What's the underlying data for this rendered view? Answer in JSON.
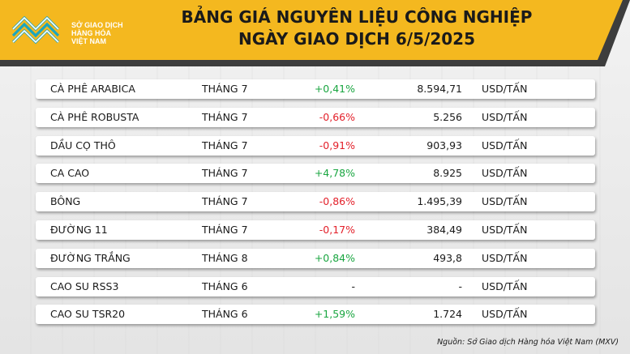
{
  "logo": {
    "line1": "SỞ GIAO DỊCH",
    "line2": "HÀNG HÓA",
    "line3": "VIỆT NAM"
  },
  "title": {
    "line1": "BẢNG GIÁ NGUYÊN LIỆU CÔNG NGHIỆP",
    "line2": "NGÀY GIAO DỊCH 6/5/2025"
  },
  "colors": {
    "header_yellow": "#f4b81f",
    "header_dark": "#3d3d3d",
    "logo_teal": "#1aa5c0",
    "up": "#1aa641",
    "down": "#e3202a"
  },
  "rows": [
    {
      "name": "CÀ PHÊ ARABICA",
      "month": "THÁNG 7",
      "change": "+0,41%",
      "trend": "up",
      "price": "8.594,71",
      "unit": "USD/TẤN"
    },
    {
      "name": "CÀ PHÊ ROBUSTA",
      "month": "THÁNG 7",
      "change": "-0,66%",
      "trend": "down",
      "price": "5.256",
      "unit": "USD/TẤN"
    },
    {
      "name": "DẦU CỌ THÔ",
      "month": "THÁNG 7",
      "change": "-0,91%",
      "trend": "down",
      "price": "903,93",
      "unit": "USD/TẤN"
    },
    {
      "name": "CA CAO",
      "month": "THÁNG 7",
      "change": "+4,78%",
      "trend": "up",
      "price": "8.925",
      "unit": "USD/TẤN"
    },
    {
      "name": "BÔNG",
      "month": "THÁNG 7",
      "change": "-0,86%",
      "trend": "down",
      "price": "1.495,39",
      "unit": "USD/TẤN"
    },
    {
      "name": "ĐƯỜNG 11",
      "month": "THÁNG 7",
      "change": "-0,17%",
      "trend": "down",
      "price": "384,49",
      "unit": "USD/TẤN"
    },
    {
      "name": "ĐƯỜNG TRẮNG",
      "month": "THÁNG 8",
      "change": "+0,84%",
      "trend": "up",
      "price": "493,8",
      "unit": "USD/TẤN"
    },
    {
      "name": "CAO SU RSS3",
      "month": "THÁNG 6",
      "change": "-",
      "trend": "flat",
      "price": "-",
      "unit": "USD/TẤN"
    },
    {
      "name": "CAO SU TSR20",
      "month": "THÁNG 6",
      "change": "+1,59%",
      "trend": "up",
      "price": "1.724",
      "unit": "USD/TẤN"
    }
  ],
  "source": "Nguồn: Sở Giao dịch Hàng hóa Việt Nam (MXV)"
}
